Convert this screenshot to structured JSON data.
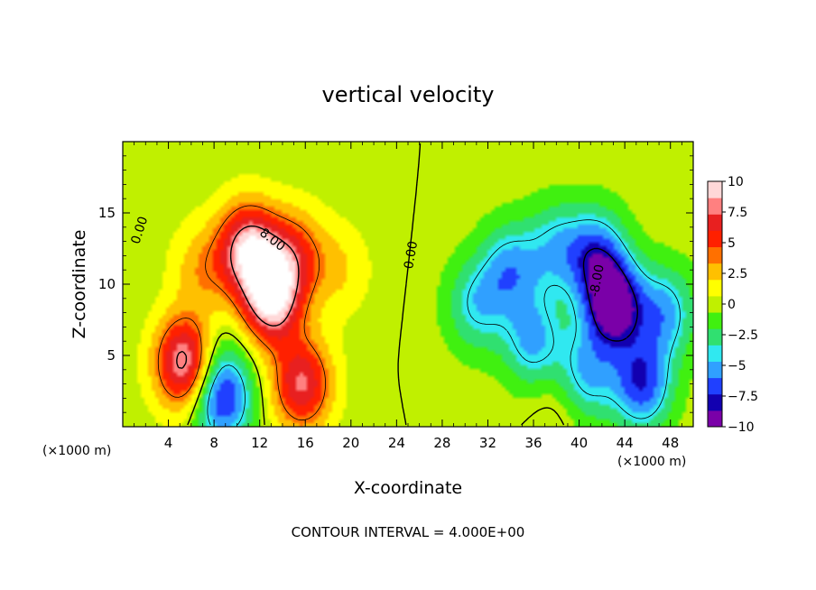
{
  "chart_data": {
    "type": "heatmap",
    "title": "vertical velocity",
    "xlabel": "X-coordinate",
    "ylabel": "Z-coordinate",
    "x_unit_left": "(×1000 m)",
    "x_unit_right": "(×1000 m)",
    "footer": "CONTOUR INTERVAL = 4.000E+00",
    "xlim": [
      0,
      50
    ],
    "ylim": [
      0,
      20
    ],
    "xticks": [
      4,
      8,
      12,
      16,
      20,
      24,
      28,
      32,
      36,
      40,
      44,
      48
    ],
    "xtick_labels": [
      "4",
      "8",
      "12",
      "16",
      "20",
      "24",
      "28",
      "32",
      "36",
      "40",
      "44",
      "48"
    ],
    "yticks": [
      5,
      10,
      15
    ],
    "ytick_labels": [
      "5",
      "10",
      "15"
    ],
    "colorbar": {
      "min": -10,
      "max": 10,
      "ticks": [
        10,
        7.5,
        5,
        2.5,
        0,
        -2.5,
        -5,
        -7.5,
        -10
      ],
      "tick_labels": [
        "10",
        "7.5",
        "5",
        "2.5",
        "0",
        "−2.5",
        "−5",
        "−7.5",
        "−10"
      ],
      "colors": [
        "#7a00a8",
        "#1200b0",
        "#2040ff",
        "#30a0ff",
        "#30e8f0",
        "#30e070",
        "#40f010",
        "#c0f000",
        "#ffff00",
        "#ffc000",
        "#ff7000",
        "#ff2000",
        "#e82020",
        "#ff8080",
        "#ffd8d8"
      ]
    },
    "contour_labels": [
      {
        "text": "0.00",
        "x": 1.8,
        "y": 13.7,
        "rotate": -72
      },
      {
        "text": "8.00",
        "x": 12.9,
        "y": 12.9,
        "rotate": 38
      },
      {
        "text": "0.00",
        "x": 25.6,
        "y": 12.0,
        "rotate": -80
      },
      {
        "text": "-8.00",
        "x": 41.9,
        "y": 10.2,
        "rotate": -80
      }
    ],
    "features": [
      {
        "x": 5.5,
        "z": 4.5,
        "w": 9.5
      },
      {
        "x": 7.0,
        "z": 11.0,
        "w": 3.0
      },
      {
        "x": 13.0,
        "z": 9.0,
        "w": 10.0
      },
      {
        "x": 11.0,
        "z": 12.5,
        "w": 9.0
      },
      {
        "x": 15.0,
        "z": 12.0,
        "w": 5.0
      },
      {
        "x": 15.7,
        "z": 3.0,
        "w": 7.5
      },
      {
        "x": 19.0,
        "z": 11.0,
        "w": 2.0
      },
      {
        "x": 8.7,
        "z": 2.0,
        "w": -7.5
      },
      {
        "x": 8.0,
        "z": 5.0,
        "w": -1.5
      },
      {
        "x": 34.0,
        "z": 11.0,
        "w": -5.0
      },
      {
        "x": 36.0,
        "z": 6.0,
        "w": -5.0
      },
      {
        "x": 31.0,
        "z": 8.5,
        "w": -4.0
      },
      {
        "x": 38.0,
        "z": 12.5,
        "w": -4.0
      },
      {
        "x": 43.0,
        "z": 8.5,
        "w": -10.0
      },
      {
        "x": 41.5,
        "z": 12.0,
        "w": -6.0
      },
      {
        "x": 45.5,
        "z": 3.0,
        "w": -7.0
      },
      {
        "x": 47.5,
        "z": 8.0,
        "w": -5.0
      },
      {
        "x": 40.5,
        "z": 3.5,
        "w": -5.0
      },
      {
        "x": 38.5,
        "z": 2.0,
        "w": 1.5
      }
    ]
  }
}
